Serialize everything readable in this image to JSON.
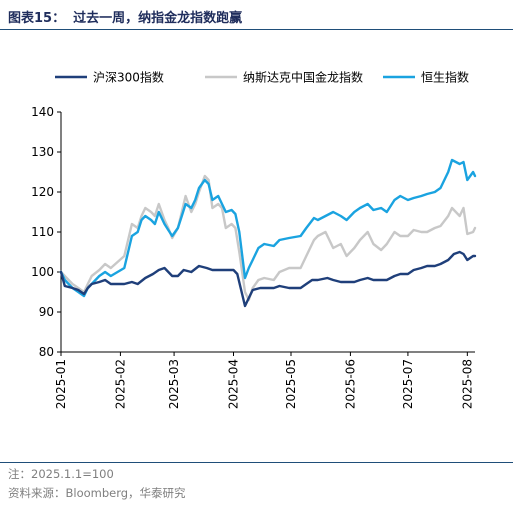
{
  "figure": {
    "number": "图表15：",
    "title": "过去一周，纳指金龙指数跑赢",
    "note": "注：2025.1.1=100",
    "source": "资料来源：Bloomberg，华泰研究"
  },
  "chart_data": {
    "type": "line",
    "xlabel": "",
    "ylabel": "",
    "ylim": [
      80,
      140
    ],
    "yticks": [
      80,
      90,
      100,
      110,
      120,
      130,
      140
    ],
    "xlim": [
      "2025-01-01",
      "2025-08-05"
    ],
    "xticks": [
      "2025-01",
      "2025-02",
      "2025-03",
      "2025-04",
      "2025-05",
      "2025-06",
      "2025-07",
      "2025-08"
    ],
    "legend_position": "top",
    "grid": false,
    "series": [
      {
        "name": "沪深300指数",
        "color": "#1f3f7a",
        "points": [
          [
            "2025-01-01",
            100
          ],
          [
            "2025-01-03",
            96.5
          ],
          [
            "2025-01-07",
            96
          ],
          [
            "2025-01-10",
            95.5
          ],
          [
            "2025-01-13",
            94.5
          ],
          [
            "2025-01-15",
            96
          ],
          [
            "2025-01-17",
            97
          ],
          [
            "2025-01-21",
            97.5
          ],
          [
            "2025-01-24",
            98
          ],
          [
            "2025-01-27",
            97
          ],
          [
            "2025-02-03",
            97
          ],
          [
            "2025-02-07",
            97.5
          ],
          [
            "2025-02-10",
            97
          ],
          [
            "2025-02-14",
            98.5
          ],
          [
            "2025-02-18",
            99.5
          ],
          [
            "2025-02-21",
            100.5
          ],
          [
            "2025-02-24",
            101
          ],
          [
            "2025-02-28",
            99
          ],
          [
            "2025-03-03",
            99
          ],
          [
            "2025-03-06",
            100.5
          ],
          [
            "2025-03-10",
            100
          ],
          [
            "2025-03-14",
            101.5
          ],
          [
            "2025-03-18",
            101
          ],
          [
            "2025-03-21",
            100.5
          ],
          [
            "2025-03-25",
            100.5
          ],
          [
            "2025-03-28",
            100.5
          ],
          [
            "2025-04-01",
            100.5
          ],
          [
            "2025-04-03",
            99.5
          ],
          [
            "2025-04-07",
            91.5
          ],
          [
            "2025-04-09",
            93.5
          ],
          [
            "2025-04-11",
            95.5
          ],
          [
            "2025-04-15",
            96
          ],
          [
            "2025-04-18",
            96
          ],
          [
            "2025-04-22",
            96
          ],
          [
            "2025-04-25",
            96.5
          ],
          [
            "2025-04-30",
            96
          ],
          [
            "2025-05-06",
            96
          ],
          [
            "2025-05-09",
            97
          ],
          [
            "2025-05-12",
            98
          ],
          [
            "2025-05-15",
            98
          ],
          [
            "2025-05-20",
            98.5
          ],
          [
            "2025-05-23",
            98
          ],
          [
            "2025-05-27",
            97.5
          ],
          [
            "2025-05-30",
            97.5
          ],
          [
            "2025-06-03",
            97.5
          ],
          [
            "2025-06-06",
            98
          ],
          [
            "2025-06-10",
            98.5
          ],
          [
            "2025-06-13",
            98
          ],
          [
            "2025-06-17",
            98
          ],
          [
            "2025-06-20",
            98
          ],
          [
            "2025-06-24",
            99
          ],
          [
            "2025-06-27",
            99.5
          ],
          [
            "2025-07-01",
            99.5
          ],
          [
            "2025-07-04",
            100.5
          ],
          [
            "2025-07-08",
            101
          ],
          [
            "2025-07-11",
            101.5
          ],
          [
            "2025-07-15",
            101.5
          ],
          [
            "2025-07-18",
            102
          ],
          [
            "2025-07-22",
            103
          ],
          [
            "2025-07-25",
            104.5
          ],
          [
            "2025-07-28",
            105
          ],
          [
            "2025-07-30",
            104.5
          ],
          [
            "2025-08-01",
            103
          ],
          [
            "2025-08-04",
            104
          ],
          [
            "2025-08-05",
            104
          ]
        ]
      },
      {
        "name": "纳斯达克中国金龙指数",
        "color": "#c8c8c8",
        "points": [
          [
            "2025-01-01",
            100
          ],
          [
            "2025-01-03",
            99
          ],
          [
            "2025-01-07",
            97
          ],
          [
            "2025-01-10",
            96
          ],
          [
            "2025-01-13",
            95
          ],
          [
            "2025-01-15",
            97
          ],
          [
            "2025-01-17",
            99
          ],
          [
            "2025-01-21",
            100.5
          ],
          [
            "2025-01-24",
            102
          ],
          [
            "2025-01-27",
            101
          ],
          [
            "2025-02-03",
            104
          ],
          [
            "2025-02-05",
            108
          ],
          [
            "2025-02-07",
            112
          ],
          [
            "2025-02-10",
            111
          ],
          [
            "2025-02-12",
            114
          ],
          [
            "2025-02-14",
            116
          ],
          [
            "2025-02-17",
            115
          ],
          [
            "2025-02-19",
            114
          ],
          [
            "2025-02-21",
            117
          ],
          [
            "2025-02-24",
            113
          ],
          [
            "2025-02-26",
            111
          ],
          [
            "2025-02-28",
            108.5
          ],
          [
            "2025-03-03",
            111
          ],
          [
            "2025-03-05",
            115
          ],
          [
            "2025-03-07",
            119
          ],
          [
            "2025-03-10",
            115
          ],
          [
            "2025-03-12",
            117
          ],
          [
            "2025-03-14",
            120
          ],
          [
            "2025-03-17",
            124
          ],
          [
            "2025-03-19",
            123
          ],
          [
            "2025-03-21",
            116
          ],
          [
            "2025-03-24",
            117
          ],
          [
            "2025-03-26",
            116
          ],
          [
            "2025-03-28",
            111
          ],
          [
            "2025-03-31",
            112
          ],
          [
            "2025-04-02",
            111
          ],
          [
            "2025-04-04",
            105
          ],
          [
            "2025-04-07",
            95
          ],
          [
            "2025-04-09",
            93
          ],
          [
            "2025-04-11",
            96
          ],
          [
            "2025-04-14",
            98
          ],
          [
            "2025-04-17",
            98.5
          ],
          [
            "2025-04-22",
            98
          ],
          [
            "2025-04-25",
            100
          ],
          [
            "2025-04-30",
            101
          ],
          [
            "2025-05-06",
            101
          ],
          [
            "2025-05-09",
            104
          ],
          [
            "2025-05-13",
            108
          ],
          [
            "2025-05-15",
            109
          ],
          [
            "2025-05-19",
            110
          ],
          [
            "2025-05-23",
            106
          ],
          [
            "2025-05-27",
            107
          ],
          [
            "2025-05-30",
            104
          ],
          [
            "2025-06-03",
            106
          ],
          [
            "2025-06-06",
            108
          ],
          [
            "2025-06-10",
            110
          ],
          [
            "2025-06-13",
            107
          ],
          [
            "2025-06-17",
            105.5
          ],
          [
            "2025-06-20",
            107
          ],
          [
            "2025-06-24",
            110
          ],
          [
            "2025-06-27",
            109
          ],
          [
            "2025-07-01",
            109
          ],
          [
            "2025-07-04",
            110.5
          ],
          [
            "2025-07-08",
            110
          ],
          [
            "2025-07-11",
            110
          ],
          [
            "2025-07-15",
            111
          ],
          [
            "2025-07-18",
            111.5
          ],
          [
            "2025-07-22",
            114
          ],
          [
            "2025-07-24",
            116
          ],
          [
            "2025-07-28",
            114
          ],
          [
            "2025-07-30",
            116
          ],
          [
            "2025-08-01",
            109.5
          ],
          [
            "2025-08-04",
            110
          ],
          [
            "2025-08-05",
            111
          ]
        ]
      },
      {
        "name": "恒生指数",
        "color": "#1aa3e0",
        "points": [
          [
            "2025-01-01",
            100
          ],
          [
            "2025-01-03",
            98
          ],
          [
            "2025-01-07",
            96
          ],
          [
            "2025-01-10",
            95
          ],
          [
            "2025-01-13",
            94
          ],
          [
            "2025-01-15",
            96
          ],
          [
            "2025-01-17",
            97
          ],
          [
            "2025-01-21",
            99
          ],
          [
            "2025-01-24",
            100
          ],
          [
            "2025-01-27",
            99
          ],
          [
            "2025-02-03",
            101
          ],
          [
            "2025-02-05",
            105
          ],
          [
            "2025-02-07",
            109
          ],
          [
            "2025-02-10",
            110
          ],
          [
            "2025-02-12",
            113
          ],
          [
            "2025-02-14",
            114
          ],
          [
            "2025-02-17",
            113
          ],
          [
            "2025-02-19",
            112
          ],
          [
            "2025-02-21",
            115
          ],
          [
            "2025-02-24",
            112
          ],
          [
            "2025-02-26",
            110.5
          ],
          [
            "2025-02-28",
            109
          ],
          [
            "2025-03-03",
            111
          ],
          [
            "2025-03-05",
            114
          ],
          [
            "2025-03-07",
            117
          ],
          [
            "2025-03-10",
            116
          ],
          [
            "2025-03-12",
            118
          ],
          [
            "2025-03-14",
            121
          ],
          [
            "2025-03-17",
            123
          ],
          [
            "2025-03-19",
            122
          ],
          [
            "2025-03-21",
            118
          ],
          [
            "2025-03-24",
            119
          ],
          [
            "2025-03-26",
            117
          ],
          [
            "2025-03-28",
            115
          ],
          [
            "2025-03-31",
            115.5
          ],
          [
            "2025-04-02",
            114.5
          ],
          [
            "2025-04-04",
            110
          ],
          [
            "2025-04-07",
            98.5
          ],
          [
            "2025-04-09",
            101
          ],
          [
            "2025-04-11",
            103
          ],
          [
            "2025-04-14",
            106
          ],
          [
            "2025-04-17",
            107
          ],
          [
            "2025-04-22",
            106.5
          ],
          [
            "2025-04-25",
            108
          ],
          [
            "2025-04-30",
            108.5
          ],
          [
            "2025-05-06",
            109
          ],
          [
            "2025-05-09",
            111
          ],
          [
            "2025-05-13",
            113.5
          ],
          [
            "2025-05-15",
            113
          ],
          [
            "2025-05-19",
            114
          ],
          [
            "2025-05-23",
            115
          ],
          [
            "2025-05-27",
            114
          ],
          [
            "2025-05-30",
            113
          ],
          [
            "2025-06-03",
            115
          ],
          [
            "2025-06-06",
            116
          ],
          [
            "2025-06-10",
            117
          ],
          [
            "2025-06-13",
            115.5
          ],
          [
            "2025-06-17",
            116
          ],
          [
            "2025-06-20",
            115
          ],
          [
            "2025-06-24",
            118
          ],
          [
            "2025-06-27",
            119
          ],
          [
            "2025-07-01",
            118
          ],
          [
            "2025-07-04",
            118.5
          ],
          [
            "2025-07-08",
            119
          ],
          [
            "2025-07-11",
            119.5
          ],
          [
            "2025-07-15",
            120
          ],
          [
            "2025-07-18",
            121
          ],
          [
            "2025-07-22",
            125
          ],
          [
            "2025-07-24",
            128
          ],
          [
            "2025-07-28",
            127
          ],
          [
            "2025-07-30",
            127.5
          ],
          [
            "2025-08-01",
            123
          ],
          [
            "2025-08-04",
            125
          ],
          [
            "2025-08-05",
            124
          ]
        ]
      }
    ]
  }
}
